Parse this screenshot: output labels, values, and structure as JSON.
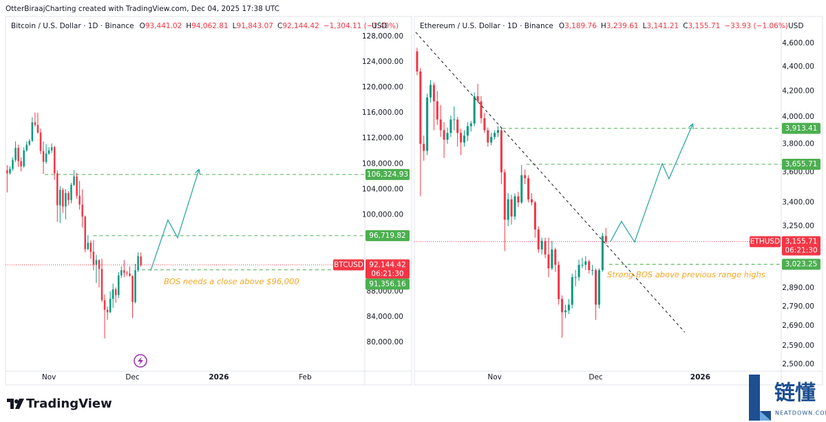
{
  "credit": "OtterBiraajCharting created with TradingView.com, Dec 04, 2025 17:38 UTC",
  "logo": "TradingView",
  "watermark": {
    "title": "链懂",
    "site": "NEATDOWN.COM"
  },
  "chart_data": [
    {
      "type": "candlestick",
      "symbol": "Bitcoin / U.S. Dollar · 1D · Binance",
      "ohlc_labels": [
        {
          "label": "O",
          "value": "93,441.02"
        },
        {
          "label": "H",
          "value": "94,062.81"
        },
        {
          "label": "L",
          "value": "91,843.07"
        },
        {
          "label": "C",
          "value": "92,144.42"
        }
      ],
      "change": "−1,304.11 (−1.40%)",
      "currency": "USD",
      "ticker": "BTCUSD",
      "countdown": "06:21:30",
      "up_color": "#089981",
      "down_color": "#f23645",
      "open": [
        107000,
        106500,
        107200,
        108600,
        110500,
        108400,
        107600,
        110100,
        111000,
        111600,
        114500,
        114100,
        112900,
        110000,
        108300,
        109600,
        110100,
        110600,
        106500,
        101500,
        103900,
        101300,
        103400,
        102300,
        104700,
        106000,
        103000,
        101600,
        99700,
        94600,
        95600,
        94200,
        92200,
        92900,
        91500,
        86600,
        85100,
        84700,
        86800,
        88300,
        87400,
        90500,
        91300,
        90900,
        90800,
        90400,
        86300,
        91300,
        93441.02
      ],
      "high": [
        107800,
        107600,
        109000,
        111500,
        111000,
        109000,
        110600,
        111500,
        111900,
        115300,
        116000,
        116000,
        113500,
        111500,
        111100,
        110600,
        111200,
        110800,
        107000,
        104500,
        104200,
        104000,
        103700,
        105000,
        107000,
        106600,
        105300,
        104000,
        99900,
        96800,
        96000,
        96000,
        93700,
        93000,
        93100,
        87500,
        85600,
        88000,
        89200,
        88600,
        91000,
        91900,
        92900,
        91200,
        91900,
        90500,
        92300,
        94100,
        94062.81
      ],
      "low": [
        103500,
        106300,
        106900,
        108300,
        107500,
        106800,
        107400,
        109900,
        110800,
        111400,
        113800,
        112700,
        109500,
        106400,
        108000,
        109400,
        109700,
        105500,
        98900,
        98700,
        100300,
        99300,
        101500,
        101800,
        104500,
        102500,
        100800,
        98000,
        94100,
        94500,
        93100,
        91300,
        89300,
        88600,
        86300,
        80600,
        83500,
        84600,
        85400,
        86200,
        86900,
        90100,
        90200,
        90400,
        90300,
        83800,
        86100,
        91000,
        91843.07
      ],
      "close": [
        106500,
        107200,
        108600,
        110500,
        108400,
        107600,
        110100,
        111000,
        111600,
        114500,
        114100,
        112900,
        110000,
        108300,
        109600,
        110100,
        110600,
        106500,
        101500,
        103900,
        101300,
        103400,
        102300,
        104700,
        106000,
        103000,
        101600,
        99700,
        94600,
        95600,
        94200,
        92200,
        92900,
        91500,
        86600,
        85100,
        84700,
        86800,
        88300,
        87400,
        90500,
        91300,
        90900,
        90800,
        90400,
        86300,
        91300,
        93500,
        92144.42
      ],
      "xlim": [
        -0.6,
        128.4
      ],
      "xticks": [
        {
          "value": 15,
          "label": "Nov"
        },
        {
          "value": 45,
          "label": "Dec"
        },
        {
          "value": 76,
          "label": "2026"
        },
        {
          "value": 107,
          "label": "Feb"
        }
      ],
      "ylim": [
        75470,
        130460
      ],
      "log_scale": false,
      "grid": false,
      "yticks": [
        {
          "value": 80000,
          "label": "80,000.00"
        },
        {
          "value": 84000,
          "label": "84,000.00"
        },
        {
          "value": 88000,
          "label": "88,000.00"
        },
        {
          "value": 100000,
          "label": "100,000.00"
        },
        {
          "value": 104000,
          "label": "104,000.00"
        },
        {
          "value": 108000,
          "label": "108,000.00"
        },
        {
          "value": 112000,
          "label": "112,000.00"
        },
        {
          "value": 116000,
          "label": "116,000.00"
        },
        {
          "value": 120000,
          "label": "120,000.00"
        },
        {
          "value": 124000,
          "label": "124,000.00"
        },
        {
          "value": 128000,
          "label": "128,000.00"
        }
      ],
      "last_price": {
        "value": 92144.42,
        "label": "92,144.42"
      },
      "level_color": "#4caf50",
      "levels": [
        {
          "value": 106324.93,
          "label": "106,324.93",
          "from": 13.5
        },
        {
          "value": 96719.82,
          "label": "96,719.82",
          "from": 30.9
        },
        {
          "value": 91356.16,
          "label": "91,356.16",
          "from": 48.3
        }
      ],
      "projection": {
        "color": "#2fa8a0",
        "x": [
          51.5,
          57.7,
          61.2,
          68.9
        ],
        "y": [
          91213,
          99190,
          96390,
          107170
        ]
      },
      "annotation": "BOS needs a close above $96,000"
    },
    {
      "type": "candlestick",
      "symbol": "Ethereum / U.S. Dollar · 1D · Binance",
      "ohlc_labels": [
        {
          "label": "O",
          "value": "3,189.76"
        },
        {
          "label": "H",
          "value": "3,239.61"
        },
        {
          "label": "L",
          "value": "3,141.21"
        },
        {
          "label": "C",
          "value": "3,155.71"
        }
      ],
      "change": "−33.93 (−1.06%)",
      "currency": "USD",
      "ticker": "ETHUSD",
      "countdown": "06:21:30",
      "up_color": "#089981",
      "down_color": "#f23645",
      "open": [
        4530,
        4360,
        3800,
        3750,
        4150,
        4250,
        4120,
        3980,
        3900,
        3830,
        3880,
        3980,
        3980,
        3880,
        3810,
        3860,
        3930,
        3950,
        4160,
        4120,
        3990,
        3900,
        3810,
        3850,
        3880,
        3900,
        3600,
        3290,
        3420,
        3310,
        3440,
        3400,
        3580,
        3560,
        3420,
        3400,
        3230,
        3110,
        3160,
        3080,
        3000,
        3110,
        3020,
        2830,
        2760,
        2770,
        2800,
        2950,
        2950,
        3020,
        3020,
        3040,
        2990,
        2990,
        2800,
        2990,
        3189.76
      ],
      "high": [
        4560,
        4390,
        3860,
        4180,
        4290,
        4270,
        4200,
        4090,
        3960,
        3920,
        4010,
        4080,
        4000,
        3910,
        3900,
        3960,
        3970,
        4190,
        4260,
        4160,
        4030,
        3920,
        3880,
        3900,
        3930,
        3920,
        3620,
        3460,
        3450,
        3460,
        3470,
        3650,
        3620,
        3580,
        3460,
        3410,
        3250,
        3180,
        3180,
        3180,
        3160,
        3120,
        3040,
        2850,
        2800,
        2830,
        2970,
        2990,
        3050,
        3060,
        3070,
        3050,
        3020,
        3000,
        3000,
        3210,
        3239.61
      ],
      "low": [
        4330,
        3440,
        3680,
        3720,
        4110,
        3900,
        3940,
        3850,
        3700,
        3800,
        3850,
        3900,
        3780,
        3720,
        3780,
        3820,
        3890,
        3930,
        4110,
        3950,
        3880,
        3780,
        3790,
        3830,
        3850,
        3520,
        3100,
        3250,
        3260,
        3290,
        3370,
        3390,
        3520,
        3400,
        3380,
        3180,
        3090,
        3080,
        3060,
        2950,
        2990,
        2980,
        2800,
        2630,
        2730,
        2750,
        2780,
        2900,
        2930,
        3000,
        2990,
        2970,
        2960,
        2720,
        2780,
        2980,
        3141.21
      ],
      "close": [
        4360,
        3800,
        3750,
        4150,
        4250,
        4120,
        3980,
        3900,
        3830,
        3880,
        3980,
        3980,
        3880,
        3810,
        3860,
        3930,
        3950,
        4160,
        4120,
        3990,
        3900,
        3810,
        3850,
        3880,
        3900,
        3600,
        3290,
        3420,
        3310,
        3440,
        3400,
        3580,
        3560,
        3420,
        3400,
        3230,
        3110,
        3160,
        3080,
        3000,
        3110,
        3020,
        2830,
        2760,
        2770,
        2800,
        2950,
        2950,
        3020,
        3020,
        3040,
        2990,
        2990,
        2800,
        2990,
        3190,
        3155.71
      ],
      "xlim": [
        -0.8,
        108
      ],
      "xticks": [
        {
          "value": 23,
          "label": "Nov"
        },
        {
          "value": 53,
          "label": "Dec"
        },
        {
          "value": 84,
          "label": "2026"
        }
      ],
      "ylim": [
        2468,
        4802
      ],
      "log_scale": true,
      "grid": false,
      "yticks": [
        {
          "value": 2500,
          "label": "2,500.00"
        },
        {
          "value": 2590,
          "label": "2,590.00"
        },
        {
          "value": 2690,
          "label": "2,690.00"
        },
        {
          "value": 2790,
          "label": "2,790.00"
        },
        {
          "value": 2890,
          "label": "2,890.00"
        },
        {
          "value": 3250,
          "label": "3,250.00"
        },
        {
          "value": 3400,
          "label": "3,400.00"
        },
        {
          "value": 3600,
          "label": "3,600.00"
        },
        {
          "value": 3800,
          "label": "3,800.00"
        },
        {
          "value": 4000,
          "label": "4,000.00"
        },
        {
          "value": 4200,
          "label": "4,200.00"
        },
        {
          "value": 4400,
          "label": "4,400.00"
        },
        {
          "value": 4600,
          "label": "4,600.00"
        }
      ],
      "last_price": {
        "value": 3155.71,
        "label": "3,155.71"
      },
      "level_color": "#4caf50",
      "levels": [
        {
          "value": 3913.41,
          "label": "3,913.41",
          "from": 25.3
        },
        {
          "value": 3655.71,
          "label": "3,655.71",
          "from": 32.4
        },
        {
          "value": 3023.25,
          "label": "3,023.25",
          "from": 56.9
        }
      ],
      "trendline": {
        "color": "#131722",
        "x": [
          -0.4,
          79.4
        ],
        "y": [
          4697,
          2657
        ]
      },
      "projection": {
        "color": "#2fa8a0",
        "x": [
          57.3,
          60.6,
          64.5,
          72.7,
          74.7,
          81.8
        ],
        "y": [
          3154,
          3280,
          3154,
          3660,
          3556,
          3948
        ]
      },
      "annotation": "Strong BOS above previous range highs"
    }
  ]
}
